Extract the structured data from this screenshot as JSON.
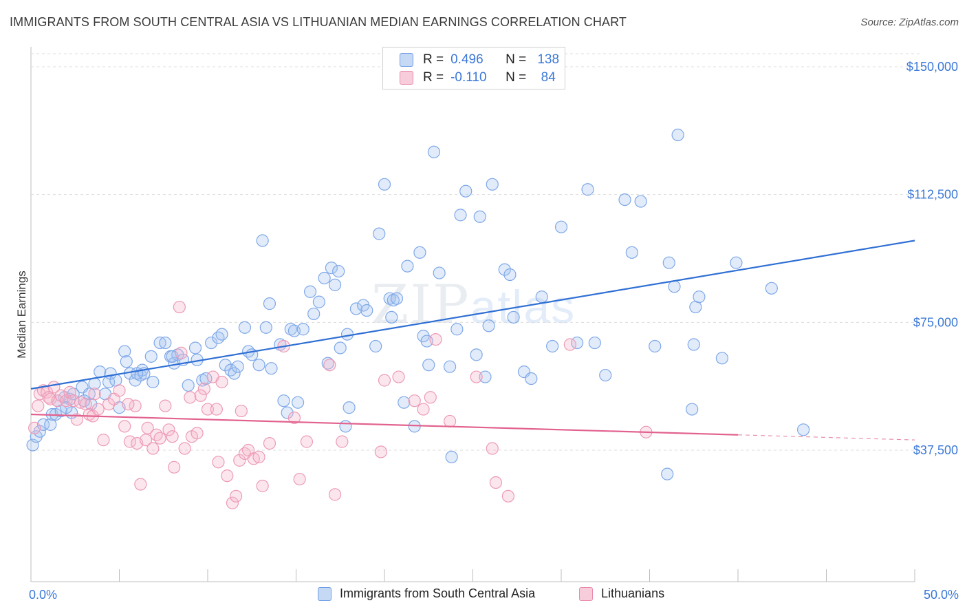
{
  "title": "IMMIGRANTS FROM SOUTH CENTRAL ASIA VS LITHUANIAN MEDIAN EARNINGS CORRELATION CHART",
  "source": "Source: ZipAtlas.com",
  "watermark": {
    "zip": "ZIP",
    "atlas": "atlas"
  },
  "legend": {
    "rows": [
      {
        "r_label": "R =",
        "r_value": "0.496",
        "n_label": "N =",
        "n_value": "138"
      },
      {
        "r_label": "R =",
        "r_value": "-0.110",
        "n_label": "N =",
        "n_value": "84"
      }
    ]
  },
  "bottom_legend": {
    "series1": "Immigrants from South Central Asia",
    "series2": "Lithuanians"
  },
  "colors": {
    "blue": "#3b78d8",
    "blue_fill": "#a9c6f0",
    "pink": "#e06690",
    "pink_fill": "#f5b8cc"
  },
  "chart_data": {
    "type": "scatter",
    "title": "IMMIGRANTS FROM SOUTH CENTRAL ASIA VS LITHUANIAN MEDIAN EARNINGS CORRELATION CHART",
    "xlabel": "",
    "ylabel": "Median Earnings",
    "x_unit": "%",
    "xlim": [
      0,
      50
    ],
    "ylim": [
      0,
      152000
    ],
    "x_tick_labels": [
      "0.0%",
      "50.0%"
    ],
    "y_ticks": [
      37500,
      75000,
      112500,
      150000
    ],
    "y_tick_labels": [
      "$37,500",
      "$75,000",
      "$112,500",
      "$150,000"
    ],
    "grid": "horizontal dashed",
    "legend_position": "top-center",
    "series": [
      {
        "name": "Immigrants from South Central Asia",
        "R": 0.496,
        "N": 138,
        "trend": {
          "x": [
            0,
            50
          ],
          "y": [
            55500,
            99000
          ],
          "dashed_after": null
        },
        "points": [
          [
            0.1,
            39000
          ],
          [
            0.3,
            41500
          ],
          [
            0.5,
            43000
          ],
          [
            0.7,
            45000
          ],
          [
            1.1,
            45000
          ],
          [
            1.2,
            48000
          ],
          [
            1.4,
            48000
          ],
          [
            1.5,
            52000
          ],
          [
            1.7,
            49000
          ],
          [
            1.9,
            53000
          ],
          [
            2.2,
            52500
          ],
          [
            2.3,
            48500
          ],
          [
            2.4,
            54000
          ],
          [
            2.9,
            56000
          ],
          [
            3.3,
            54000
          ],
          [
            3.4,
            51000
          ],
          [
            3.6,
            57000
          ],
          [
            3.9,
            60500
          ],
          [
            4.2,
            54000
          ],
          [
            4.4,
            57500
          ],
          [
            4.5,
            60000
          ],
          [
            4.8,
            58000
          ],
          [
            5.0,
            50000
          ],
          [
            5.3,
            66500
          ],
          [
            5.4,
            63500
          ],
          [
            5.6,
            60000
          ],
          [
            5.9,
            58000
          ],
          [
            6.2,
            59500
          ],
          [
            6.3,
            61000
          ],
          [
            6.4,
            60000
          ],
          [
            6.8,
            65000
          ],
          [
            6.9,
            57500
          ],
          [
            7.3,
            69000
          ],
          [
            7.6,
            69000
          ],
          [
            7.9,
            65000
          ],
          [
            8.1,
            63000
          ],
          [
            8.3,
            65500
          ],
          [
            8.6,
            64000
          ],
          [
            8.9,
            56500
          ],
          [
            9.3,
            67500
          ],
          [
            9.4,
            64000
          ],
          [
            9.7,
            58000
          ],
          [
            9.9,
            58500
          ],
          [
            10.2,
            69000
          ],
          [
            10.6,
            70500
          ],
          [
            10.8,
            71500
          ],
          [
            11.0,
            62500
          ],
          [
            11.3,
            61000
          ],
          [
            11.5,
            60000
          ],
          [
            11.7,
            62000
          ],
          [
            12.1,
            73500
          ],
          [
            12.3,
            66500
          ],
          [
            12.5,
            65500
          ],
          [
            12.9,
            62500
          ],
          [
            13.1,
            99000
          ],
          [
            13.3,
            73500
          ],
          [
            13.5,
            80500
          ],
          [
            13.6,
            61500
          ],
          [
            14.1,
            68500
          ],
          [
            14.3,
            52000
          ],
          [
            14.5,
            48500
          ],
          [
            14.7,
            73000
          ],
          [
            14.9,
            72500
          ],
          [
            15.1,
            51500
          ],
          [
            15.4,
            73000
          ],
          [
            15.8,
            84000
          ],
          [
            16.0,
            77500
          ],
          [
            16.3,
            81000
          ],
          [
            16.6,
            88000
          ],
          [
            16.8,
            63000
          ],
          [
            17.0,
            91000
          ],
          [
            17.2,
            86000
          ],
          [
            17.4,
            90000
          ],
          [
            17.5,
            67500
          ],
          [
            17.8,
            44500
          ],
          [
            17.9,
            71500
          ],
          [
            18.4,
            79000
          ],
          [
            18.8,
            80000
          ],
          [
            19.0,
            78500
          ],
          [
            19.5,
            68000
          ],
          [
            19.7,
            101000
          ],
          [
            20.0,
            115500
          ],
          [
            20.3,
            82000
          ],
          [
            20.4,
            76500
          ],
          [
            20.5,
            81500
          ],
          [
            20.7,
            82000
          ],
          [
            21.1,
            51500
          ],
          [
            21.3,
            91500
          ],
          [
            21.7,
            44500
          ],
          [
            22.0,
            95500
          ],
          [
            22.2,
            71000
          ],
          [
            22.4,
            69500
          ],
          [
            22.5,
            62500
          ],
          [
            22.8,
            125000
          ],
          [
            23.1,
            89500
          ],
          [
            23.7,
            62000
          ],
          [
            23.8,
            35500
          ],
          [
            24.1,
            73000
          ],
          [
            24.3,
            106500
          ],
          [
            24.6,
            113500
          ],
          [
            25.2,
            65500
          ],
          [
            25.4,
            106000
          ],
          [
            25.7,
            59000
          ],
          [
            25.9,
            74000
          ],
          [
            26.1,
            115500
          ],
          [
            26.8,
            90500
          ],
          [
            27.1,
            89000
          ],
          [
            27.3,
            76500
          ],
          [
            27.9,
            60500
          ],
          [
            28.3,
            58500
          ],
          [
            28.9,
            82500
          ],
          [
            29.5,
            68000
          ],
          [
            30.0,
            103000
          ],
          [
            30.9,
            69000
          ],
          [
            31.5,
            114000
          ],
          [
            31.9,
            69000
          ],
          [
            32.5,
            59500
          ],
          [
            33.6,
            111000
          ],
          [
            34.0,
            95500
          ],
          [
            34.5,
            110500
          ],
          [
            35.3,
            68000
          ],
          [
            36.0,
            30500
          ],
          [
            36.1,
            92500
          ],
          [
            36.4,
            85500
          ],
          [
            36.6,
            130000
          ],
          [
            37.4,
            49500
          ],
          [
            37.5,
            68500
          ],
          [
            37.6,
            79500
          ],
          [
            37.8,
            82500
          ],
          [
            39.1,
            64500
          ],
          [
            39.9,
            92500
          ],
          [
            41.9,
            85000
          ],
          [
            43.7,
            43500
          ],
          [
            2.0,
            50000
          ],
          [
            6.0,
            60000
          ],
          [
            18.0,
            50000
          ],
          [
            3.0,
            52000
          ],
          [
            8.0,
            65000
          ]
        ]
      },
      {
        "name": "Lithuanians",
        "R": -0.11,
        "N": 84,
        "trend": {
          "x": [
            0,
            50
          ],
          "y": [
            48000,
            40500
          ],
          "dashed_after": 40
        },
        "points": [
          [
            0.2,
            44000
          ],
          [
            0.4,
            50500
          ],
          [
            0.5,
            54000
          ],
          [
            0.7,
            55000
          ],
          [
            0.9,
            54500
          ],
          [
            1.1,
            52500
          ],
          [
            1.3,
            56000
          ],
          [
            1.5,
            52000
          ],
          [
            1.7,
            53500
          ],
          [
            2.0,
            52000
          ],
          [
            2.2,
            54500
          ],
          [
            2.4,
            52000
          ],
          [
            2.6,
            46500
          ],
          [
            2.8,
            51500
          ],
          [
            3.1,
            51000
          ],
          [
            3.3,
            48000
          ],
          [
            3.5,
            47500
          ],
          [
            3.8,
            49500
          ],
          [
            4.1,
            40500
          ],
          [
            4.4,
            51000
          ],
          [
            4.7,
            52500
          ],
          [
            5.0,
            55000
          ],
          [
            5.3,
            44500
          ],
          [
            5.6,
            40000
          ],
          [
            5.9,
            50500
          ],
          [
            6.0,
            39500
          ],
          [
            6.2,
            27500
          ],
          [
            6.5,
            40500
          ],
          [
            6.6,
            44000
          ],
          [
            6.9,
            38000
          ],
          [
            7.1,
            42000
          ],
          [
            7.3,
            41000
          ],
          [
            7.6,
            50500
          ],
          [
            7.8,
            43500
          ],
          [
            8.0,
            41500
          ],
          [
            8.1,
            32500
          ],
          [
            8.4,
            79500
          ],
          [
            8.5,
            66000
          ],
          [
            8.7,
            38000
          ],
          [
            9.0,
            53000
          ],
          [
            9.1,
            41500
          ],
          [
            9.4,
            42500
          ],
          [
            9.8,
            55500
          ],
          [
            10.0,
            49500
          ],
          [
            10.3,
            59000
          ],
          [
            10.5,
            49500
          ],
          [
            10.6,
            34000
          ],
          [
            10.8,
            57500
          ],
          [
            11.1,
            30000
          ],
          [
            11.4,
            22000
          ],
          [
            11.6,
            24000
          ],
          [
            11.8,
            34500
          ],
          [
            12.1,
            36500
          ],
          [
            12.3,
            37500
          ],
          [
            12.6,
            35000
          ],
          [
            12.9,
            35500
          ],
          [
            13.1,
            27000
          ],
          [
            13.5,
            39500
          ],
          [
            14.3,
            68000
          ],
          [
            14.9,
            47000
          ],
          [
            15.2,
            29000
          ],
          [
            15.6,
            40000
          ],
          [
            16.9,
            62500
          ],
          [
            17.2,
            24500
          ],
          [
            17.6,
            40000
          ],
          [
            19.8,
            37000
          ],
          [
            20.0,
            58000
          ],
          [
            20.8,
            59000
          ],
          [
            21.7,
            52000
          ],
          [
            22.2,
            49500
          ],
          [
            22.6,
            53000
          ],
          [
            22.9,
            70000
          ],
          [
            23.7,
            46000
          ],
          [
            25.2,
            59000
          ],
          [
            26.1,
            38000
          ],
          [
            26.3,
            28000
          ],
          [
            27.0,
            24000
          ],
          [
            30.5,
            68500
          ],
          [
            34.8,
            42800
          ],
          [
            3.6,
            54000
          ],
          [
            1.0,
            53000
          ],
          [
            5.5,
            51000
          ],
          [
            9.6,
            53500
          ],
          [
            11.9,
            49000
          ]
        ]
      }
    ]
  }
}
